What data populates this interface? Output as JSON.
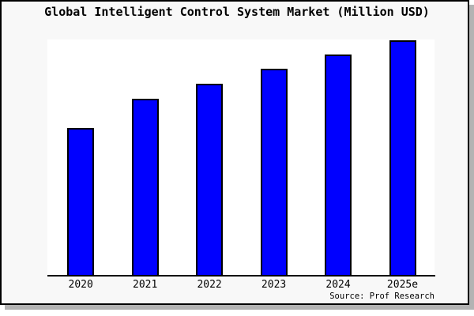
{
  "chart_data": {
    "type": "bar",
    "title": "Global Intelligent Control System Market (Million USD)",
    "categories": [
      "2020",
      "2021",
      "2022",
      "2023",
      "2024",
      "2025e"
    ],
    "values": [
      188,
      225,
      244,
      263,
      281,
      299
    ],
    "value_scale": "relative bar heights in px; no y-axis tick labels are shown on the chart",
    "xlabel": "",
    "ylabel": "",
    "grid": false,
    "legend": false,
    "source_note": "Source: Prof Research",
    "colors": {
      "bar_fill": "#0000ff",
      "bar_border": "#000000",
      "figure_background": "#f8f8f8",
      "plot_background": "#ffffff",
      "frame_border": "#000000",
      "shadow": "#b3b3b3",
      "text": "#000000"
    }
  }
}
